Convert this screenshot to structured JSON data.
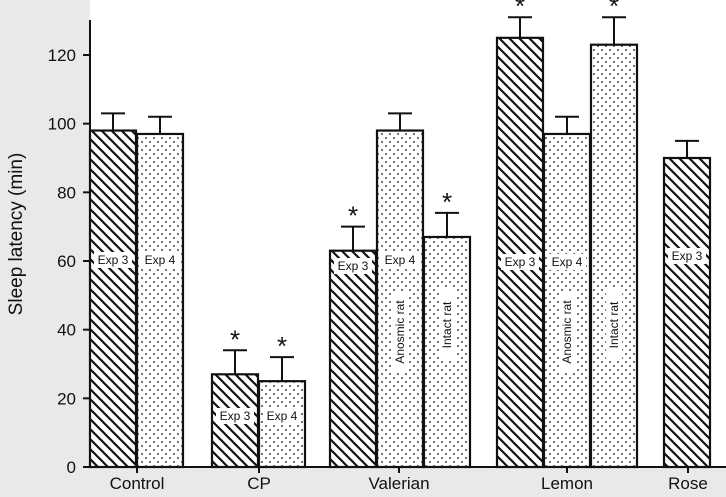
{
  "chart_data": {
    "type": "bar",
    "title": "",
    "xlabel": "",
    "ylabel": "Sleep latency (min)",
    "ylim": [
      0,
      130
    ],
    "yticks": [
      0,
      20,
      40,
      60,
      80,
      100,
      120
    ],
    "categories": [
      "Control",
      "CP",
      "Valerian",
      "Lemon",
      "Rose"
    ],
    "significance_marker": "*",
    "bars": [
      {
        "category": "Control",
        "label": "Exp 3",
        "sublabel": "",
        "pattern": "hatch",
        "value": 98,
        "error": 5,
        "significant": false
      },
      {
        "category": "Control",
        "label": "Exp 4",
        "sublabel": "",
        "pattern": "dots",
        "value": 97,
        "error": 5,
        "significant": false
      },
      {
        "category": "CP",
        "label": "Exp 3",
        "sublabel": "",
        "pattern": "hatch",
        "value": 27,
        "error": 7,
        "significant": true
      },
      {
        "category": "CP",
        "label": "Exp 4",
        "sublabel": "",
        "pattern": "dots",
        "value": 25,
        "error": 7,
        "significant": true
      },
      {
        "category": "Valerian",
        "label": "Exp 3",
        "sublabel": "",
        "pattern": "hatch",
        "value": 63,
        "error": 7,
        "significant": true
      },
      {
        "category": "Valerian",
        "label": "Exp 4",
        "sublabel": "Anosmic rat",
        "pattern": "dots",
        "value": 98,
        "error": 5,
        "significant": false
      },
      {
        "category": "Valerian",
        "label": "",
        "sublabel": "Intact rat",
        "pattern": "dots",
        "value": 67,
        "error": 7,
        "significant": true
      },
      {
        "category": "Lemon",
        "label": "Exp 3",
        "sublabel": "",
        "pattern": "hatch",
        "value": 125,
        "error": 6,
        "significant": true
      },
      {
        "category": "Lemon",
        "label": "Exp 4",
        "sublabel": "Anosmic rat",
        "pattern": "dots",
        "value": 97,
        "error": 5,
        "significant": false
      },
      {
        "category": "Lemon",
        "label": "",
        "sublabel": "Intact rat",
        "pattern": "dots",
        "value": 123,
        "error": 8,
        "significant": true
      },
      {
        "category": "Rose",
        "label": "Exp 3",
        "sublabel": "",
        "pattern": "hatch",
        "value": 90,
        "error": 5,
        "significant": false
      }
    ]
  }
}
